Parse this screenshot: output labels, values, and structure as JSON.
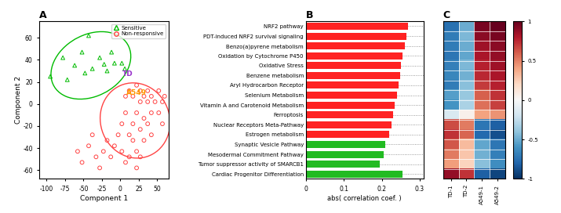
{
  "chart_data": [
    {
      "type": "scatter",
      "title": "A",
      "xlabel": "Component 1",
      "ylabel": "Component 2",
      "series": [
        {
          "name": "Sensitive",
          "color": "#00BB00",
          "marker": "triangle",
          "x": [
            -95,
            -78,
            -72,
            -62,
            -52,
            -48,
            -43,
            -38,
            -28,
            -22,
            -18,
            -12,
            -8,
            2,
            6
          ],
          "values": [
            25,
            42,
            22,
            35,
            47,
            28,
            62,
            32,
            42,
            36,
            30,
            47,
            37,
            37,
            32
          ]
        },
        {
          "name": "Non-responsive",
          "color": "#FF4444",
          "marker": "circle",
          "x": [
            -58,
            -52,
            -43,
            -38,
            -33,
            -28,
            -23,
            -18,
            -13,
            -8,
            -3,
            2,
            2,
            7,
            7,
            7,
            12,
            12,
            12,
            17,
            17,
            17,
            22,
            22,
            22,
            22,
            27,
            27,
            27,
            27,
            32,
            32,
            32,
            37,
            37,
            37,
            42,
            42,
            42,
            47,
            52,
            52,
            57,
            57,
            60
          ],
          "values": [
            -43,
            -53,
            -38,
            -28,
            -48,
            -58,
            -43,
            -33,
            -48,
            -38,
            -28,
            -18,
            -43,
            -53,
            -8,
            7,
            -28,
            12,
            -48,
            -18,
            7,
            -33,
            -8,
            17,
            -43,
            -58,
            2,
            -23,
            12,
            -48,
            -13,
            7,
            -33,
            2,
            -18,
            12,
            -8,
            7,
            -28,
            2,
            -8,
            12,
            2,
            -18,
            7
          ]
        }
      ],
      "ellipses": [
        {
          "x": -40,
          "y": 35,
          "width": 110,
          "height": 58,
          "angle": 12,
          "color": "#00BB00"
        },
        {
          "x": 20,
          "y": -15,
          "width": 95,
          "height": 68,
          "angle": -5,
          "color": "#FF4444"
        }
      ],
      "annotations": [
        {
          "x": 10,
          "y": 27,
          "text": "TD",
          "color": "#9933CC"
        },
        {
          "x": 22,
          "y": 10,
          "text": "A549",
          "color": "#FF9900"
        }
      ],
      "xlim": [
        -110,
        65
      ],
      "xticks": [
        -100,
        -75,
        -50,
        -25,
        0,
        25,
        50
      ],
      "ylim": [
        -68,
        75
      ],
      "yticks": [
        -60,
        -40,
        -20,
        0,
        20,
        40,
        60
      ],
      "legend": "upper right"
    },
    {
      "type": "bar",
      "orientation": "horizontal",
      "title": "B",
      "xlabel": "abs( correlation coef. )",
      "categories": [
        "NRF2 pathway",
        "PDT-induced NRF2 survival signaling",
        "Benzo(a)pyrene metabolism",
        "Oxidation by Cytochrome P450",
        "Oxidative Stress",
        "Benzene metabolism",
        "Aryl Hydrocarbon Receptor",
        "Selenium Metabolism",
        "Vitamin A and Carotenoid Metabolism",
        "Ferroptosis",
        "Nuclear Receptors Meta-Pathway",
        "Estrogen metabolism",
        "Synaptic Vesicle Pathway",
        "Mesodermal Commitment Pathway",
        "Tumor suppressor activity of SMARCB1",
        "Cardiac Progenitor Differentiation"
      ],
      "values": [
        0.27,
        0.265,
        0.26,
        0.255,
        0.25,
        0.248,
        0.245,
        0.24,
        0.235,
        0.23,
        0.225,
        0.22,
        0.21,
        0.205,
        0.195,
        0.255
      ],
      "colors": [
        "#FF2222",
        "#FF2222",
        "#FF2222",
        "#FF2222",
        "#FF2222",
        "#FF2222",
        "#FF2222",
        "#FF2222",
        "#FF2222",
        "#FF2222",
        "#FF2222",
        "#FF2222",
        "#22BB22",
        "#22BB22",
        "#22BB22",
        "#22BB22"
      ],
      "xlim": [
        0,
        0.31
      ],
      "xticks": [
        0,
        0.1,
        0.2,
        0.3
      ]
    },
    {
      "type": "heatmap",
      "title": "C",
      "categories": [
        "TD-1",
        "TD-2",
        "A549-1",
        "A549-2"
      ],
      "values": [
        [
          -0.75,
          -0.5,
          0.95,
          1.0
        ],
        [
          -0.7,
          -0.45,
          0.9,
          0.95
        ],
        [
          -0.7,
          -0.5,
          0.85,
          0.9
        ],
        [
          -0.72,
          -0.52,
          0.82,
          0.88
        ],
        [
          -0.68,
          -0.45,
          0.78,
          0.85
        ],
        [
          -0.65,
          -0.48,
          0.75,
          0.82
        ],
        [
          -0.7,
          -0.42,
          0.7,
          0.78
        ],
        [
          -0.55,
          -0.38,
          0.6,
          0.72
        ],
        [
          -0.6,
          -0.32,
          0.55,
          0.68
        ],
        [
          -0.15,
          0.05,
          0.4,
          0.45
        ],
        [
          0.65,
          0.52,
          -0.72,
          -0.82
        ],
        [
          0.72,
          0.58,
          -0.78,
          -0.88
        ],
        [
          0.62,
          0.32,
          -0.52,
          -0.72
        ],
        [
          0.52,
          0.28,
          -0.48,
          -0.68
        ],
        [
          0.42,
          0.22,
          -0.42,
          -0.62
        ],
        [
          0.88,
          0.72,
          -0.82,
          -0.92
        ]
      ],
      "clim": [
        -1,
        1
      ],
      "cticks": [
        -1,
        -0.5,
        0,
        0.5,
        1
      ],
      "tick_labels": "x"
    }
  ]
}
